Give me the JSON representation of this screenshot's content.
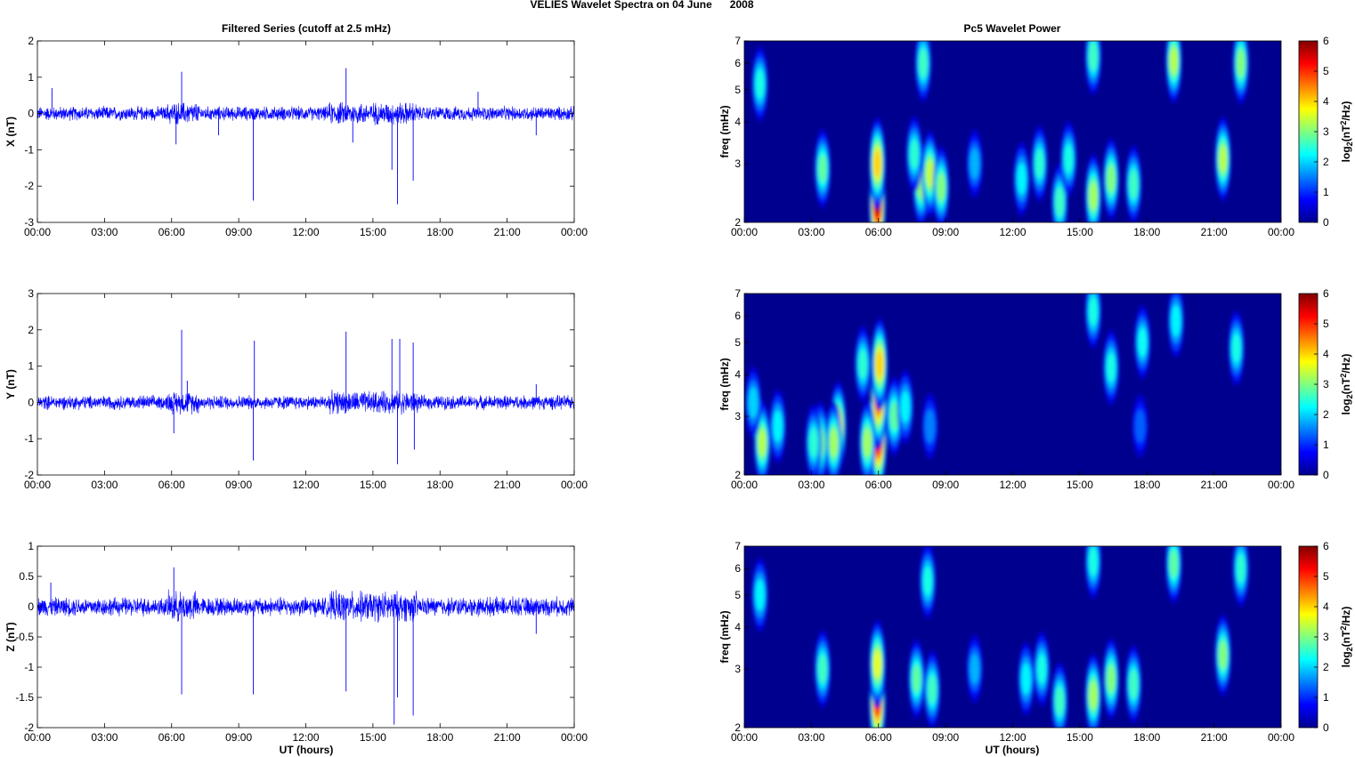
{
  "figure_title": "VELIES Wavelet Spectra on 04 June      2008",
  "left_column_title": "Filtered Series (cutoff at 2.5 mHz)",
  "right_column_title": "Pc5 Wavelet Power",
  "xlabel": "UT (hours)",
  "colors": {
    "trace": "#0000ff",
    "background": "#00008f"
  },
  "chart_data": [
    {
      "type": "line",
      "ylabel": "X (nT)",
      "xlabel": "",
      "x_ticks": [
        "00:00",
        "03:00",
        "06:00",
        "09:00",
        "12:00",
        "15:00",
        "18:00",
        "21:00",
        "00:00"
      ],
      "x_range_hours": [
        0,
        24
      ],
      "ylim": [
        -3,
        2
      ],
      "y_ticks": [
        2,
        1,
        0,
        -1,
        -2,
        -3
      ],
      "noise_amplitude_nT": 0.15,
      "spikes": [
        {
          "t": 0.65,
          "v": 0.7
        },
        {
          "t": 6.2,
          "v": -0.85
        },
        {
          "t": 6.45,
          "v": 1.15
        },
        {
          "t": 8.1,
          "v": -0.6
        },
        {
          "t": 9.65,
          "v": -2.4
        },
        {
          "t": 13.8,
          "v": 1.25
        },
        {
          "t": 14.1,
          "v": -0.8
        },
        {
          "t": 15.85,
          "v": -1.55
        },
        {
          "t": 16.1,
          "v": -2.5
        },
        {
          "t": 16.8,
          "v": -1.85
        },
        {
          "t": 19.7,
          "v": 0.6
        },
        {
          "t": 22.3,
          "v": -0.6
        }
      ]
    },
    {
      "type": "line",
      "ylabel": "Y (nT)",
      "xlabel": "",
      "x_ticks": [
        "00:00",
        "03:00",
        "06:00",
        "09:00",
        "12:00",
        "15:00",
        "18:00",
        "21:00",
        "00:00"
      ],
      "x_range_hours": [
        0,
        24
      ],
      "ylim": [
        -2,
        3
      ],
      "y_ticks": [
        3,
        2,
        1,
        0,
        -1,
        -2
      ],
      "noise_amplitude_nT": 0.15,
      "spikes": [
        {
          "t": 6.1,
          "v": -0.85
        },
        {
          "t": 6.45,
          "v": 2.0
        },
        {
          "t": 6.7,
          "v": 0.6
        },
        {
          "t": 9.65,
          "v": -1.6
        },
        {
          "t": 9.7,
          "v": 1.7
        },
        {
          "t": 13.8,
          "v": 1.95
        },
        {
          "t": 15.85,
          "v": 1.75
        },
        {
          "t": 16.1,
          "v": -1.7
        },
        {
          "t": 16.2,
          "v": 1.75
        },
        {
          "t": 16.8,
          "v": 1.65
        },
        {
          "t": 16.85,
          "v": -1.3
        },
        {
          "t": 22.3,
          "v": 0.5
        }
      ]
    },
    {
      "type": "line",
      "ylabel": "Z (nT)",
      "xlabel": "UT (hours)",
      "x_ticks": [
        "00:00",
        "03:00",
        "06:00",
        "09:00",
        "12:00",
        "15:00",
        "18:00",
        "21:00",
        "00:00"
      ],
      "x_range_hours": [
        0,
        24
      ],
      "ylim": [
        -2,
        1
      ],
      "y_ticks": [
        1,
        0.5,
        0,
        -0.5,
        -1,
        -1.5,
        -2
      ],
      "noise_amplitude_nT": 0.12,
      "spikes": [
        {
          "t": 0.6,
          "v": 0.4
        },
        {
          "t": 6.1,
          "v": 0.65
        },
        {
          "t": 6.45,
          "v": -1.45
        },
        {
          "t": 9.65,
          "v": -1.45
        },
        {
          "t": 13.8,
          "v": -1.4
        },
        {
          "t": 15.95,
          "v": -1.95
        },
        {
          "t": 16.1,
          "v": -1.5
        },
        {
          "t": 16.8,
          "v": -1.8
        },
        {
          "t": 22.3,
          "v": -0.45
        }
      ]
    },
    {
      "type": "heatmap",
      "ylabel": "freq (mHz)",
      "xlabel": "",
      "x_ticks": [
        "00:00",
        "03:00",
        "06:00",
        "09:00",
        "12:00",
        "15:00",
        "18:00",
        "21:00",
        "00:00"
      ],
      "x_range_hours": [
        0,
        24
      ],
      "y_scale": "log",
      "ylim": [
        2,
        7
      ],
      "y_ticks": [
        7,
        6,
        5,
        4,
        3,
        2
      ],
      "colorbar_label": "log2(nT2/Hz)",
      "colorbar_range": [
        0,
        6
      ],
      "colorbar_ticks": [
        6,
        5,
        4,
        3,
        2,
        1,
        0
      ],
      "blobs": [
        {
          "t": 5.95,
          "f": 2.3,
          "v": 5.7
        },
        {
          "t": 5.95,
          "f": 3.0,
          "v": 4.0
        },
        {
          "t": 3.5,
          "f": 2.9,
          "v": 2.8
        },
        {
          "t": 7.9,
          "f": 2.6,
          "v": 3.1
        },
        {
          "t": 8.3,
          "f": 2.8,
          "v": 3.4
        },
        {
          "t": 8.8,
          "f": 2.55,
          "v": 3.0
        },
        {
          "t": 7.6,
          "f": 3.2,
          "v": 2.5
        },
        {
          "t": 8.0,
          "f": 6.0,
          "v": 2.6
        },
        {
          "t": 0.7,
          "f": 5.2,
          "v": 2.4
        },
        {
          "t": 12.4,
          "f": 2.7,
          "v": 2.2
        },
        {
          "t": 13.2,
          "f": 3.0,
          "v": 2.5
        },
        {
          "t": 14.1,
          "f": 2.3,
          "v": 2.6
        },
        {
          "t": 14.5,
          "f": 3.1,
          "v": 2.4
        },
        {
          "t": 15.6,
          "f": 2.4,
          "v": 3.2
        },
        {
          "t": 16.4,
          "f": 2.7,
          "v": 3.0
        },
        {
          "t": 17.4,
          "f": 2.6,
          "v": 2.6
        },
        {
          "t": 19.2,
          "f": 6.1,
          "v": 3.3
        },
        {
          "t": 21.4,
          "f": 3.1,
          "v": 3.3
        },
        {
          "t": 22.2,
          "f": 6.0,
          "v": 3.0
        },
        {
          "t": 15.6,
          "f": 6.3,
          "v": 2.6
        },
        {
          "t": 10.3,
          "f": 3.0,
          "v": 1.8
        }
      ]
    },
    {
      "type": "heatmap",
      "ylabel": "freq (mHz)",
      "xlabel": "",
      "x_ticks": [
        "00:00",
        "03:00",
        "06:00",
        "09:00",
        "12:00",
        "15:00",
        "18:00",
        "21:00",
        "00:00"
      ],
      "x_range_hours": [
        0,
        24
      ],
      "y_scale": "log",
      "ylim": [
        2,
        7
      ],
      "y_ticks": [
        7,
        6,
        5,
        4,
        3,
        2
      ],
      "colorbar_label": "log2(nT2/Hz)",
      "colorbar_range": [
        0,
        6
      ],
      "colorbar_ticks": [
        6,
        5,
        4,
        3,
        2,
        1,
        0
      ],
      "blobs": [
        {
          "t": 6.0,
          "f": 2.6,
          "v": 5.6
        },
        {
          "t": 6.0,
          "f": 3.4,
          "v": 5.0
        },
        {
          "t": 6.05,
          "f": 4.3,
          "v": 4.0
        },
        {
          "t": 5.5,
          "f": 2.5,
          "v": 3.2
        },
        {
          "t": 5.3,
          "f": 4.3,
          "v": 2.5
        },
        {
          "t": 4.2,
          "f": 2.8,
          "v": 3.8
        },
        {
          "t": 4.0,
          "f": 2.5,
          "v": 3.2
        },
        {
          "t": 3.4,
          "f": 2.5,
          "v": 3.0
        },
        {
          "t": 3.1,
          "f": 2.5,
          "v": 2.5
        },
        {
          "t": 0.8,
          "f": 2.5,
          "v": 3.3
        },
        {
          "t": 1.5,
          "f": 2.8,
          "v": 2.2
        },
        {
          "t": 0.4,
          "f": 3.3,
          "v": 2.0
        },
        {
          "t": 6.7,
          "f": 3.0,
          "v": 2.8
        },
        {
          "t": 7.2,
          "f": 3.2,
          "v": 2.2
        },
        {
          "t": 8.3,
          "f": 2.8,
          "v": 1.5
        },
        {
          "t": 15.6,
          "f": 6.2,
          "v": 2.4
        },
        {
          "t": 16.4,
          "f": 4.2,
          "v": 2.4
        },
        {
          "t": 17.8,
          "f": 5.0,
          "v": 2.3
        },
        {
          "t": 19.3,
          "f": 5.8,
          "v": 2.2
        },
        {
          "t": 22.0,
          "f": 4.8,
          "v": 2.4
        },
        {
          "t": 17.7,
          "f": 2.8,
          "v": 1.3
        }
      ]
    },
    {
      "type": "heatmap",
      "ylabel": "freq (mHz)",
      "xlabel": "UT (hours)",
      "x_ticks": [
        "00:00",
        "03:00",
        "06:00",
        "09:00",
        "12:00",
        "15:00",
        "18:00",
        "21:00",
        "00:00"
      ],
      "x_range_hours": [
        0,
        24
      ],
      "y_scale": "log",
      "ylim": [
        2,
        7
      ],
      "y_ticks": [
        7,
        6,
        5,
        4,
        3,
        2
      ],
      "colorbar_label": "log2(nT2/Hz)",
      "colorbar_range": [
        0,
        6
      ],
      "colorbar_ticks": [
        6,
        5,
        4,
        3,
        2,
        1,
        0
      ],
      "blobs": [
        {
          "t": 5.95,
          "f": 2.4,
          "v": 5.0
        },
        {
          "t": 5.95,
          "f": 3.1,
          "v": 3.6
        },
        {
          "t": 3.5,
          "f": 3.0,
          "v": 2.6
        },
        {
          "t": 7.7,
          "f": 2.8,
          "v": 2.8
        },
        {
          "t": 8.4,
          "f": 2.6,
          "v": 2.6
        },
        {
          "t": 8.2,
          "f": 5.5,
          "v": 2.4
        },
        {
          "t": 0.7,
          "f": 5.0,
          "v": 2.2
        },
        {
          "t": 12.6,
          "f": 2.8,
          "v": 2.2
        },
        {
          "t": 13.3,
          "f": 3.0,
          "v": 2.4
        },
        {
          "t": 14.1,
          "f": 2.4,
          "v": 2.6
        },
        {
          "t": 15.6,
          "f": 2.5,
          "v": 3.2
        },
        {
          "t": 16.4,
          "f": 2.8,
          "v": 3.0
        },
        {
          "t": 17.4,
          "f": 2.7,
          "v": 2.6
        },
        {
          "t": 19.2,
          "f": 6.2,
          "v": 2.8
        },
        {
          "t": 21.4,
          "f": 3.3,
          "v": 3.0
        },
        {
          "t": 22.2,
          "f": 6.0,
          "v": 2.5
        },
        {
          "t": 10.3,
          "f": 3.0,
          "v": 1.8
        },
        {
          "t": 15.6,
          "f": 6.3,
          "v": 2.4
        }
      ]
    }
  ]
}
